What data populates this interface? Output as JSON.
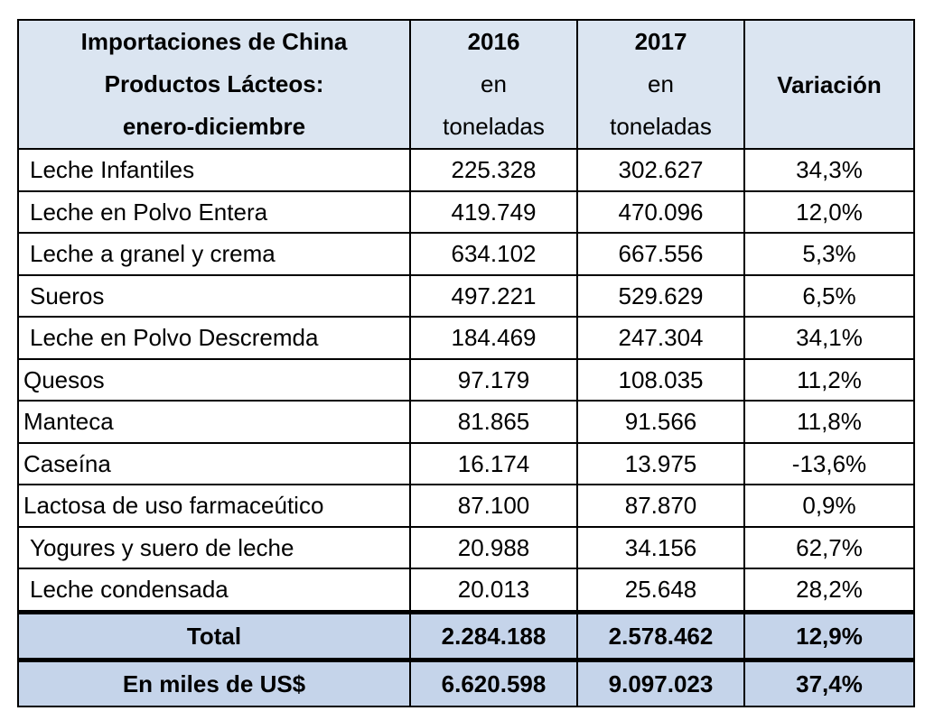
{
  "header": {
    "title_lines": [
      "Importaciones de China",
      "Productos Lácteos:",
      "enero-diciembre"
    ],
    "col2016": {
      "year": "2016",
      "line2": "en",
      "line3": "toneladas"
    },
    "col2017": {
      "year": "2017",
      "line2": "en",
      "line3": "toneladas"
    },
    "variation": "Variación"
  },
  "rows": [
    {
      "product": "Leche Infantiles",
      "y2016": "225.328",
      "y2017": "302.627",
      "variation": "34,3%"
    },
    {
      "product": "Leche en Polvo Entera",
      "y2016": "419.749",
      "y2017": "470.096",
      "variation": "12,0%"
    },
    {
      "product": "Leche a granel y crema",
      "y2016": "634.102",
      "y2017": "667.556",
      "variation": "5,3%"
    },
    {
      "product": "Sueros",
      "y2016": "497.221",
      "y2017": "529.629",
      "variation": "6,5%"
    },
    {
      "product": "Leche en Polvo Descremda",
      "y2016": "184.469",
      "y2017": "247.304",
      "variation": "34,1%"
    },
    {
      "product": "Quesos",
      "y2016": "97.179",
      "y2017": "108.035",
      "variation": "11,2%"
    },
    {
      "product": "Manteca",
      "y2016": "81.865",
      "y2017": "91.566",
      "variation": "11,8%"
    },
    {
      "product": "Caseína",
      "y2016": "16.174",
      "y2017": "13.975",
      "variation": "-13,6%"
    },
    {
      "product": "Lactosa de uso farmaceútico",
      "y2016": "87.100",
      "y2017": "87.870",
      "variation": "0,9%"
    },
    {
      "product": "Yogures y suero de leche",
      "y2016": "20.988",
      "y2017": "34.156",
      "variation": "62,7%"
    },
    {
      "product": "Leche condensada",
      "y2016": "20.013",
      "y2017": "25.648",
      "variation": "28,2%"
    }
  ],
  "total": {
    "label": "Total",
    "y2016": "2.284.188",
    "y2017": "2.578.462",
    "variation": "12,9%"
  },
  "usd": {
    "label": "En miles de US$",
    "y2016": "6.620.598",
    "y2017": "9.097.023",
    "variation": "37,4%"
  }
}
